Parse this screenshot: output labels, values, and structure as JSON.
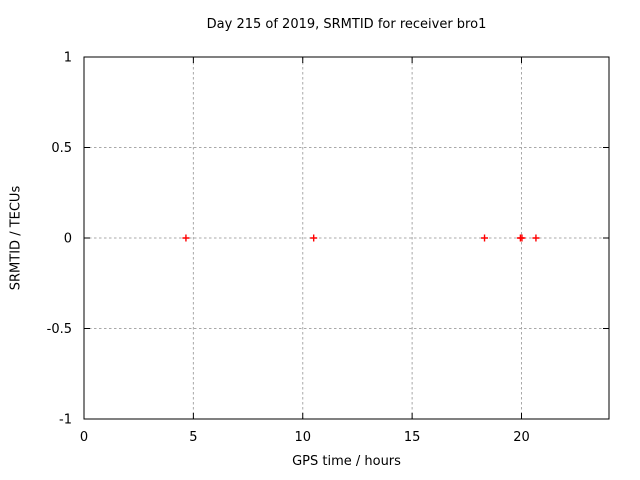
{
  "chart_data": {
    "type": "scatter",
    "title": "Day 215 of 2019, SRMTID for receiver bro1",
    "xlabel": "GPS time / hours",
    "ylabel": "SRMTID / TECUs",
    "xlim": [
      0,
      24
    ],
    "ylim": [
      -1,
      1
    ],
    "grid": true,
    "legend": "none",
    "xticks": [
      {
        "value": 0,
        "label": "0"
      },
      {
        "value": 5,
        "label": "5"
      },
      {
        "value": 10,
        "label": "10"
      },
      {
        "value": 15,
        "label": "15"
      },
      {
        "value": 20,
        "label": "20"
      }
    ],
    "yticks": [
      {
        "value": -1,
        "label": "-1"
      },
      {
        "value": -0.5,
        "label": "-0.5"
      },
      {
        "value": 0,
        "label": "0"
      },
      {
        "value": 0.5,
        "label": "0.5"
      },
      {
        "value": 1,
        "label": "1"
      }
    ],
    "series": [
      {
        "name": "SRMTID",
        "marker": "plus",
        "color": "#ff0000",
        "points": [
          {
            "x": 4.66,
            "y": 0
          },
          {
            "x": 10.5,
            "y": 0
          },
          {
            "x": 18.31,
            "y": 0
          },
          {
            "x": 19.95,
            "y": 0
          },
          {
            "x": 20.02,
            "y": 0
          },
          {
            "x": 20.66,
            "y": 0
          }
        ]
      }
    ],
    "colors": {
      "background": "#ffffff",
      "axis": "#000000",
      "text": "#000000",
      "grid": "#a8a8a8",
      "marker": "#ff0000"
    }
  }
}
